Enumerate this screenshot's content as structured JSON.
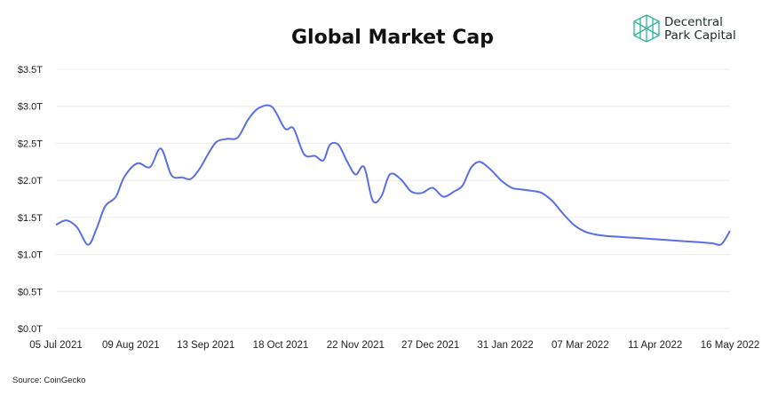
{
  "chart_data": {
    "type": "line",
    "title": "Global Market Cap",
    "xlabel": "",
    "ylabel": "",
    "ylim": [
      0,
      3.5
    ],
    "y_ticks": [
      0,
      0.5,
      1.0,
      1.5,
      2.0,
      2.5,
      3.0,
      3.5
    ],
    "y_tick_labels": [
      "$0.0T",
      "$0.5T",
      "$1.0T",
      "$1.5T",
      "$2.0T",
      "$2.5T",
      "$3.0T",
      "$3.5T"
    ],
    "x_tick_labels": [
      "05 Jul 2021",
      "09 Aug 2021",
      "13 Sep 2021",
      "18 Oct 2021",
      "22 Nov 2021",
      "27 Dec 2021",
      "31 Jan 2022",
      "07 Mar 2022",
      "11 Apr 2022",
      "16 May 2022"
    ],
    "x_range": [
      "2021-07-05",
      "2022-05-16"
    ],
    "grid": true,
    "legend": "none",
    "line_color": "#5a6ee6",
    "series": [
      {
        "x": [
          "2021-07-05",
          "2021-07-10",
          "2021-07-15",
          "2021-07-20",
          "2021-07-24",
          "2021-07-28",
          "2021-08-02",
          "2021-08-06",
          "2021-08-12",
          "2021-08-18",
          "2021-08-23",
          "2021-08-28",
          "2021-09-02",
          "2021-09-06",
          "2021-09-10",
          "2021-09-14",
          "2021-09-18",
          "2021-09-23",
          "2021-09-28",
          "2021-10-03",
          "2021-10-08",
          "2021-10-14",
          "2021-10-20",
          "2021-10-24",
          "2021-10-29",
          "2021-11-03",
          "2021-11-07",
          "2021-11-10",
          "2021-11-14",
          "2021-11-18",
          "2021-11-22",
          "2021-11-26",
          "2021-11-30",
          "2021-12-04",
          "2021-12-08",
          "2021-12-13",
          "2021-12-18",
          "2021-12-23",
          "2021-12-28",
          "2022-01-02",
          "2022-01-07",
          "2022-01-11",
          "2022-01-15",
          "2022-01-19",
          "2022-01-24",
          "2022-01-29",
          "2022-02-03",
          "2022-02-07",
          "2022-02-12",
          "2022-02-17",
          "2022-02-22",
          "2022-02-27",
          "2022-03-04",
          "2022-03-09",
          "2022-03-14",
          "2022-03-19",
          "2022-03-24",
          "2022-03-29",
          "2022-04-04",
          "2022-04-09",
          "2022-04-14",
          "2022-04-19",
          "2022-04-24",
          "2022-04-29",
          "2022-05-04",
          "2022-05-08",
          "2022-05-12",
          "2022-05-16"
        ],
        "values": [
          1.4,
          1.46,
          1.36,
          1.13,
          1.35,
          1.65,
          1.78,
          2.05,
          2.23,
          2.18,
          2.43,
          2.07,
          2.04,
          2.02,
          2.15,
          2.35,
          2.52,
          2.56,
          2.58,
          2.83,
          2.98,
          2.99,
          2.7,
          2.7,
          2.35,
          2.33,
          2.27,
          2.48,
          2.48,
          2.26,
          2.08,
          2.18,
          1.73,
          1.78,
          2.08,
          2.02,
          1.85,
          1.83,
          1.9,
          1.78,
          1.85,
          1.93,
          2.17,
          2.25,
          2.15,
          2.0,
          1.9,
          1.88,
          1.86,
          1.83,
          1.72,
          1.55,
          1.4,
          1.31,
          1.27,
          1.25,
          1.24,
          1.23,
          1.22,
          1.21,
          1.2,
          1.19,
          1.18,
          1.17,
          1.16,
          1.15,
          1.14,
          1.32
        ]
      }
    ]
  },
  "branding": {
    "line1": "Decentral",
    "line2": "Park Capital"
  },
  "source": "Source: CoinGecko"
}
